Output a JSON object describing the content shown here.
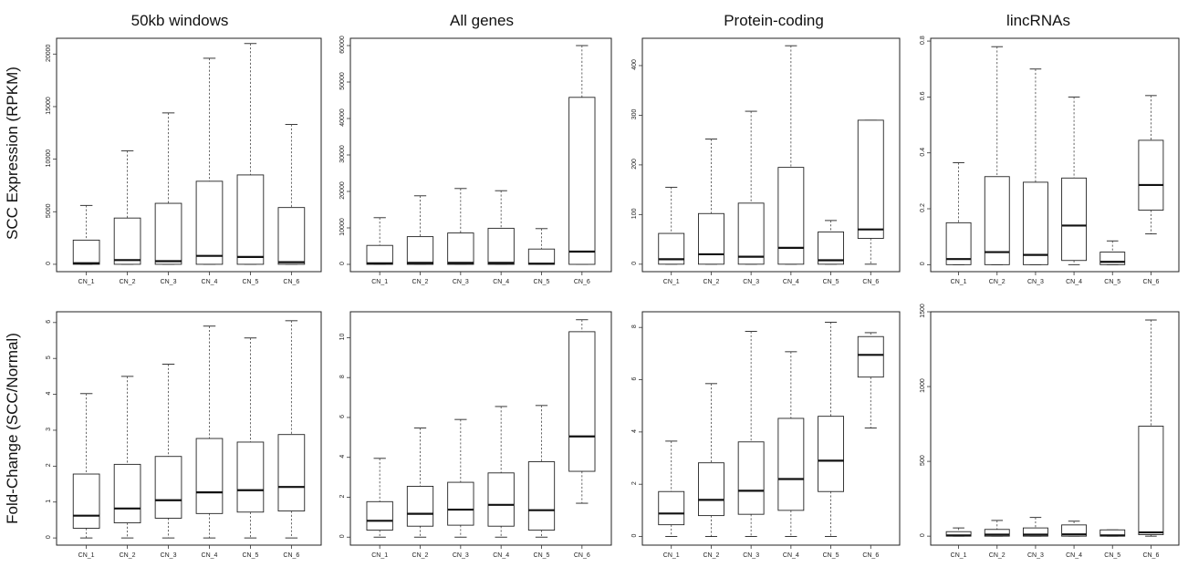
{
  "row_labels": [
    "SCC Expression (RPKM)",
    "Fold-Change (SCC/Normal)"
  ],
  "column_titles": [
    "50kb windows",
    "All genes",
    "Protein-coding",
    "lincRNAs"
  ],
  "chart_data": [
    {
      "type": "boxplot",
      "title": "50kb windows",
      "ylabel": "SCC Expression (RPKM)",
      "categories": [
        "CN_1",
        "CN_2",
        "CN_3",
        "CN_4",
        "CN_5",
        "CN_6"
      ],
      "ylim": [
        -700,
        21500
      ],
      "yticks": [
        0,
        5000,
        10000,
        15000,
        20000
      ],
      "boxes": [
        {
          "min": 0,
          "q1": 0,
          "median": 100,
          "q3": 2300,
          "max": 5600
        },
        {
          "min": 0,
          "q1": 0,
          "median": 400,
          "q3": 4400,
          "max": 10800
        },
        {
          "min": 0,
          "q1": 0,
          "median": 300,
          "q3": 5800,
          "max": 14400
        },
        {
          "min": 0,
          "q1": 0,
          "median": 800,
          "q3": 7900,
          "max": 19600
        },
        {
          "min": 0,
          "q1": 0,
          "median": 700,
          "q3": 8500,
          "max": 21000
        },
        {
          "min": 0,
          "q1": 0,
          "median": 200,
          "q3": 5400,
          "max": 13300
        }
      ]
    },
    {
      "type": "boxplot",
      "title": "All genes",
      "ylabel": "",
      "categories": [
        "CN_1",
        "CN_2",
        "CN_3",
        "CN_4",
        "CN_5",
        "CN_6"
      ],
      "ylim": [
        -2000,
        62000
      ],
      "yticks": [
        0,
        10000,
        20000,
        30000,
        40000,
        50000,
        60000
      ],
      "boxes": [
        {
          "min": 0,
          "q1": 0,
          "median": 300,
          "q3": 5200,
          "max": 12800
        },
        {
          "min": 0,
          "q1": 0,
          "median": 400,
          "q3": 7600,
          "max": 18800
        },
        {
          "min": 0,
          "q1": 0,
          "median": 400,
          "q3": 8600,
          "max": 20800
        },
        {
          "min": 0,
          "q1": 0,
          "median": 400,
          "q3": 9900,
          "max": 20200
        },
        {
          "min": 0,
          "q1": 0,
          "median": 200,
          "q3": 4200,
          "max": 9800
        },
        {
          "min": 0,
          "q1": 0,
          "median": 3500,
          "q3": 45800,
          "max": 60000
        }
      ]
    },
    {
      "type": "boxplot",
      "title": "Protein-coding",
      "ylabel": "",
      "categories": [
        "CN_1",
        "CN_2",
        "CN_3",
        "CN_4",
        "CN_5",
        "CN_6"
      ],
      "ylim": [
        -15,
        455
      ],
      "yticks": [
        0,
        100,
        200,
        300,
        400
      ],
      "boxes": [
        {
          "min": 0,
          "q1": 0,
          "median": 10,
          "q3": 62,
          "max": 155
        },
        {
          "min": 0,
          "q1": 0,
          "median": 20,
          "q3": 102,
          "max": 252
        },
        {
          "min": 0,
          "q1": 0,
          "median": 15,
          "q3": 123,
          "max": 308
        },
        {
          "min": 0,
          "q1": 0,
          "median": 33,
          "q3": 195,
          "max": 440
        },
        {
          "min": 0,
          "q1": 0,
          "median": 8,
          "q3": 65,
          "max": 88
        },
        {
          "min": 0,
          "q1": 52,
          "median": 70,
          "q3": 290,
          "max": 290
        }
      ]
    },
    {
      "type": "boxplot",
      "title": "lincRNAs",
      "ylabel": "",
      "categories": [
        "CN_1",
        "CN_2",
        "CN_3",
        "CN_4",
        "CN_5",
        "CN_6"
      ],
      "ylim": [
        -0.025,
        0.81
      ],
      "yticks": [
        0.0,
        0.2,
        0.4,
        0.6,
        0.8
      ],
      "boxes": [
        {
          "min": 0,
          "q1": 0,
          "median": 0.02,
          "q3": 0.15,
          "max": 0.365
        },
        {
          "min": 0,
          "q1": 0,
          "median": 0.045,
          "q3": 0.315,
          "max": 0.78
        },
        {
          "min": 0,
          "q1": 0,
          "median": 0.035,
          "q3": 0.295,
          "max": 0.7
        },
        {
          "min": 0,
          "q1": 0.015,
          "median": 0.14,
          "q3": 0.31,
          "max": 0.6
        },
        {
          "min": 0,
          "q1": 0,
          "median": 0.01,
          "q3": 0.045,
          "max": 0.085
        },
        {
          "min": 0.11,
          "q1": 0.195,
          "median": 0.285,
          "q3": 0.445,
          "max": 0.605
        }
      ]
    },
    {
      "type": "boxplot",
      "title": "",
      "ylabel": "Fold-Change (SCC/Normal)",
      "categories": [
        "CN_1",
        "CN_2",
        "CN_3",
        "CN_4",
        "CN_5",
        "CN_6"
      ],
      "ylim": [
        -0.2,
        6.3
      ],
      "yticks": [
        0,
        1,
        2,
        3,
        4,
        5,
        6
      ],
      "boxes": [
        {
          "min": 0,
          "q1": 0.27,
          "median": 0.62,
          "q3": 1.78,
          "max": 4.02
        },
        {
          "min": 0,
          "q1": 0.42,
          "median": 0.82,
          "q3": 2.05,
          "max": 4.5
        },
        {
          "min": 0,
          "q1": 0.55,
          "median": 1.05,
          "q3": 2.27,
          "max": 4.84
        },
        {
          "min": 0,
          "q1": 0.68,
          "median": 1.27,
          "q3": 2.77,
          "max": 5.9
        },
        {
          "min": 0,
          "q1": 0.72,
          "median": 1.33,
          "q3": 2.67,
          "max": 5.57
        },
        {
          "min": 0,
          "q1": 0.75,
          "median": 1.42,
          "q3": 2.88,
          "max": 6.05
        }
      ]
    },
    {
      "type": "boxplot",
      "title": "",
      "ylabel": "",
      "categories": [
        "CN_1",
        "CN_2",
        "CN_3",
        "CN_4",
        "CN_5",
        "CN_6"
      ],
      "ylim": [
        -0.4,
        11.3
      ],
      "yticks": [
        0,
        2,
        4,
        6,
        8,
        10
      ],
      "boxes": [
        {
          "min": 0,
          "q1": 0.35,
          "median": 0.82,
          "q3": 1.78,
          "max": 3.95
        },
        {
          "min": 0,
          "q1": 0.55,
          "median": 1.17,
          "q3": 2.55,
          "max": 5.47
        },
        {
          "min": 0,
          "q1": 0.6,
          "median": 1.38,
          "q3": 2.75,
          "max": 5.9
        },
        {
          "min": 0,
          "q1": 0.55,
          "median": 1.62,
          "q3": 3.22,
          "max": 6.55
        },
        {
          "min": 0,
          "q1": 0.35,
          "median": 1.35,
          "q3": 3.78,
          "max": 6.6
        },
        {
          "min": 1.7,
          "q1": 3.3,
          "median": 5.05,
          "q3": 10.3,
          "max": 10.9
        }
      ]
    },
    {
      "type": "boxplot",
      "title": "",
      "ylabel": "",
      "categories": [
        "CN_1",
        "CN_2",
        "CN_3",
        "CN_4",
        "CN_5",
        "CN_6"
      ],
      "ylim": [
        -0.33,
        8.6
      ],
      "yticks": [
        0,
        2,
        4,
        6,
        8
      ],
      "boxes": [
        {
          "min": 0,
          "q1": 0.45,
          "median": 0.88,
          "q3": 1.72,
          "max": 3.65
        },
        {
          "min": 0,
          "q1": 0.8,
          "median": 1.4,
          "q3": 2.82,
          "max": 5.85
        },
        {
          "min": 0,
          "q1": 0.85,
          "median": 1.75,
          "q3": 3.62,
          "max": 7.85
        },
        {
          "min": 0,
          "q1": 1.0,
          "median": 2.2,
          "q3": 4.52,
          "max": 7.07
        },
        {
          "min": 0,
          "q1": 1.72,
          "median": 2.9,
          "q3": 4.6,
          "max": 8.2
        },
        {
          "min": 4.15,
          "q1": 6.1,
          "median": 6.95,
          "q3": 7.65,
          "max": 7.8
        }
      ]
    },
    {
      "type": "boxplot",
      "title": "",
      "ylabel": "",
      "categories": [
        "CN_1",
        "CN_2",
        "CN_3",
        "CN_4",
        "CN_5",
        "CN_6"
      ],
      "ylim": [
        -60,
        1500
      ],
      "yticks": [
        0,
        500,
        1000,
        1500
      ],
      "boxes": [
        {
          "min": 0,
          "q1": 0,
          "median": 5,
          "q3": 30,
          "max": 55
        },
        {
          "min": 0,
          "q1": 0,
          "median": 10,
          "q3": 45,
          "max": 105
        },
        {
          "min": 0,
          "q1": 0,
          "median": 10,
          "q3": 55,
          "max": 125
        },
        {
          "min": 0,
          "q1": 0,
          "median": 12,
          "q3": 75,
          "max": 100
        },
        {
          "min": 0,
          "q1": 0,
          "median": 5,
          "q3": 42,
          "max": 42
        },
        {
          "min": 0,
          "q1": 10,
          "median": 25,
          "q3": 735,
          "max": 1445
        }
      ]
    }
  ]
}
